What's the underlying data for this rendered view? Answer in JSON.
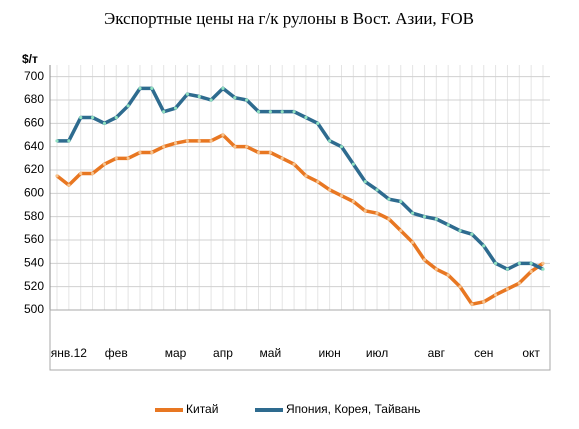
{
  "chart_data": {
    "type": "line",
    "title": "Экспортные цены на г/к рулоны в Вост. Азии,  FOB",
    "y_label": "$/т",
    "categories": [
      null,
      "янв.12",
      null,
      null,
      null,
      "фев",
      null,
      null,
      null,
      null,
      "мар",
      null,
      null,
      null,
      "апр",
      null,
      null,
      null,
      "май",
      null,
      null,
      null,
      null,
      "июн",
      null,
      null,
      null,
      "июл",
      null,
      null,
      null,
      null,
      "авг",
      null,
      null,
      null,
      "сен",
      null,
      null,
      null,
      "окт",
      null
    ],
    "series": [
      {
        "name": "Китай",
        "color": "#e87722",
        "values": [
          615,
          607,
          617,
          617,
          625,
          630,
          630,
          635,
          635,
          640,
          643,
          645,
          645,
          645,
          650,
          640,
          640,
          635,
          635,
          630,
          625,
          615,
          610,
          603,
          598,
          593,
          585,
          583,
          578,
          568,
          558,
          543,
          535,
          530,
          520,
          505,
          507,
          513,
          518,
          523,
          533,
          540
        ]
      },
      {
        "name": "Япония, Корея, Тайвань",
        "color": "#2e6b8f",
        "values": [
          645,
          645,
          665,
          665,
          660,
          665,
          675,
          690,
          690,
          670,
          673,
          685,
          683,
          680,
          690,
          682,
          680,
          670,
          670,
          670,
          670,
          665,
          660,
          645,
          640,
          625,
          610,
          603,
          595,
          593,
          583,
          580,
          578,
          573,
          568,
          565,
          555,
          540,
          535,
          540,
          540,
          535
        ]
      }
    ],
    "ylim": [
      500,
      710
    ],
    "yticks": [
      500,
      520,
      540,
      560,
      580,
      600,
      620,
      640,
      660,
      680,
      700
    ],
    "grid": true,
    "legend": "bottom"
  }
}
